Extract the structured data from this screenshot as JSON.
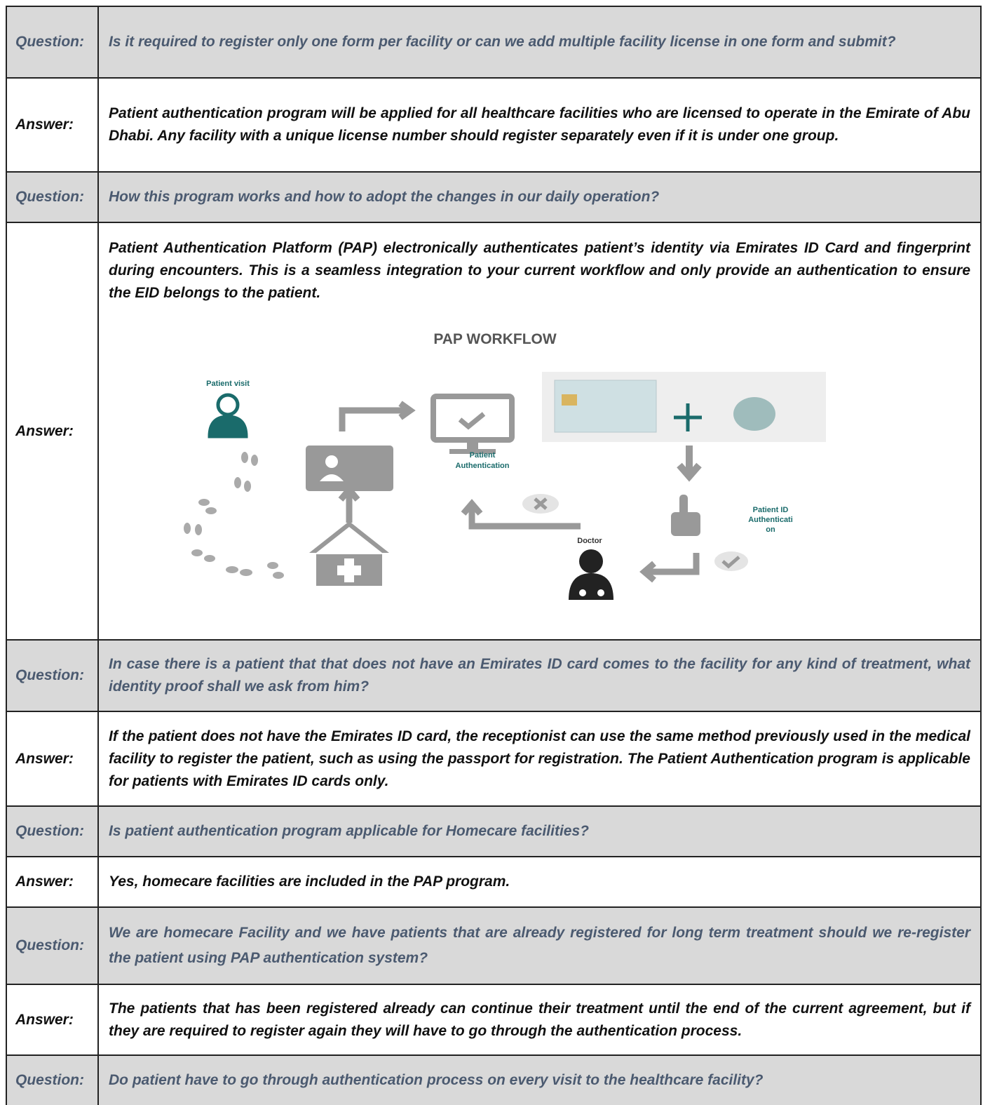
{
  "table": {
    "rows": [
      {
        "label": "Question:",
        "text": "Is it required to register only one form per facility or can we add multiple facility license in one form and submit?"
      },
      {
        "label": "Answer:",
        "text": "Patient authentication program will be applied for all healthcare facilities who are licensed to operate in the Emirate of Abu Dhabi. Any facility with a unique license number should register separately even if it is under one group."
      },
      {
        "label": "Question:",
        "text": "How this program works and how to adopt the changes in our daily operation?"
      },
      {
        "label": "Answer:",
        "text": "Patient Authentication Platform (PAP) electronically authenticates patient’s identity via Emirates ID Card and fingerprint during encounters. This is a seamless integration to your current workflow and only provide an authentication to ensure the EID belongs to the patient."
      },
      {
        "label": "Question:",
        "text": "In case there is a patient that that does not have an Emirates ID card comes to the facility for any kind of treatment, what identity proof shall we ask from him?"
      },
      {
        "label": "Answer:",
        "text": "If the patient does not have the Emirates ID card, the receptionist can use the same method previously used in the medical facility to register the patient, such as using the passport for registration. The Patient Authentication program is applicable for patients with Emirates ID cards only."
      },
      {
        "label": "Question:",
        "text": "Is patient authentication program applicable for Homecare facilities?"
      },
      {
        "label": "Answer:",
        "text": "Yes, homecare facilities are included in the PAP program."
      },
      {
        "label": "Question:",
        "text": "We are homecare Facility and we have patients that are already registered for long term treatment should we re-register the patient using PAP authentication system?"
      },
      {
        "label": "Answer:",
        "text": "The patients that has been registered already can continue their treatment until the end of the current agreement, but if they are required to register again they will have to go through the authentication process."
      },
      {
        "label": "Question:",
        "text": "Do patient have to go through authentication process on every visit to the healthcare facility?"
      }
    ]
  },
  "diagram": {
    "title": "PAP WORKFLOW",
    "patient_visit": "Patient visit",
    "patient_authentication": [
      "Patient",
      "Authentication"
    ],
    "patient_id_authentication": [
      "Patient ID",
      "Authenticati",
      "on"
    ],
    "doctor": "Doctor"
  }
}
